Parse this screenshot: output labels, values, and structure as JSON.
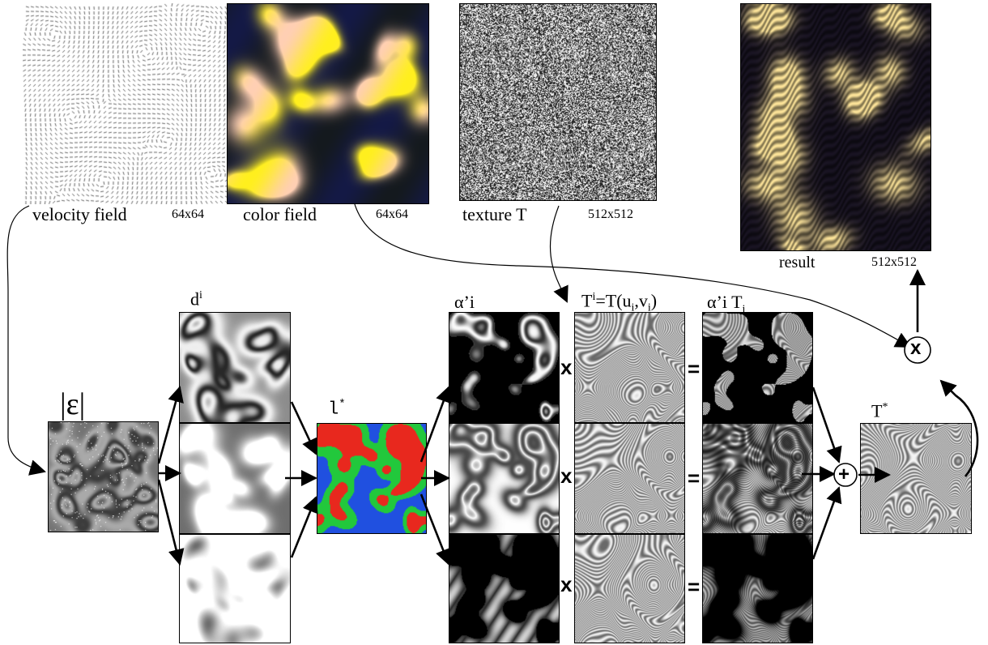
{
  "top": {
    "velocity": {
      "label": "velocity field",
      "size": "64x64"
    },
    "color": {
      "label": "color field",
      "size": "64x64"
    },
    "texture": {
      "label": "texture T",
      "size": "512x512"
    },
    "result": {
      "label": "result",
      "size": "512x512"
    }
  },
  "pipeline": {
    "eps_label": "|ε|",
    "d_label": "d",
    "d_sup": "i",
    "l_label": "l",
    "l_sup": "*",
    "alpha_label": "α’i",
    "ti_label": "T",
    "ti_sup": "i",
    "ti_eq": "=T(u",
    "ti_u_sub": "i",
    "ti_comma": ",v",
    "ti_v_sub": "i",
    "ti_close": ")",
    "aT_label": "α’i T",
    "aT_sub": "i",
    "tstar_label": "T",
    "tstar_sup": "*"
  },
  "operators": {
    "times": "x",
    "equals": "=",
    "plus": "+"
  },
  "colors": {
    "level_red": "#e8281e",
    "level_green": "#22c83c",
    "level_blue": "#2050e0"
  }
}
